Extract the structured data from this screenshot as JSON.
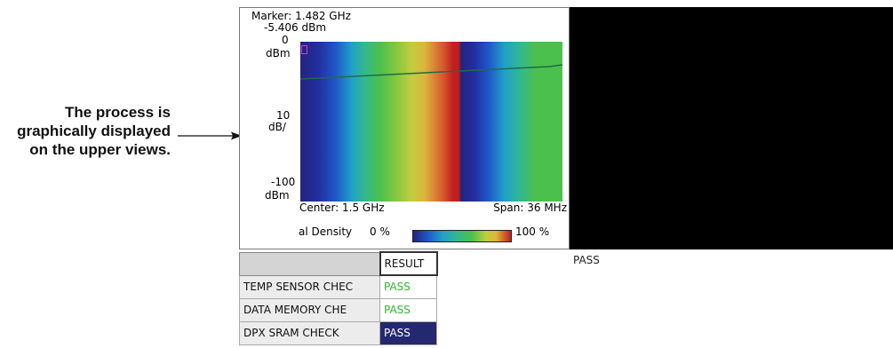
{
  "callout": {
    "lines": [
      "The process is",
      "graphically displayed",
      "on the upper views."
    ]
  },
  "dpx": {
    "marker_label": "Marker: 1.482 GHz",
    "marker_value": "-5.406 dBm",
    "ref_value": "0",
    "ref_unit": "dBm",
    "scale_value": "10",
    "scale_unit": "dB/",
    "bottom_value": "-100",
    "bottom_unit": "dBm",
    "center": "Center: 1.5 GHz",
    "span": "Span: 36 MHz",
    "density_label": "al Density",
    "density_min": "0 %",
    "density_max": "100 %"
  },
  "colors": {
    "accent_pass": "#2fb52f",
    "selected_row": "#24286e",
    "trace": "#1f6b47",
    "marker": "#d23ad2"
  },
  "status": {
    "overall": "PASS"
  },
  "table": {
    "header_name": "",
    "header_result": "RESULT",
    "rows": [
      {
        "name": "TEMP SENSOR CHEC",
        "result": "PASS"
      },
      {
        "name": "DATA MEMORY CHE",
        "result": "PASS"
      },
      {
        "name": "DPX SRAM CHECK",
        "result": "PASS"
      }
    ]
  }
}
